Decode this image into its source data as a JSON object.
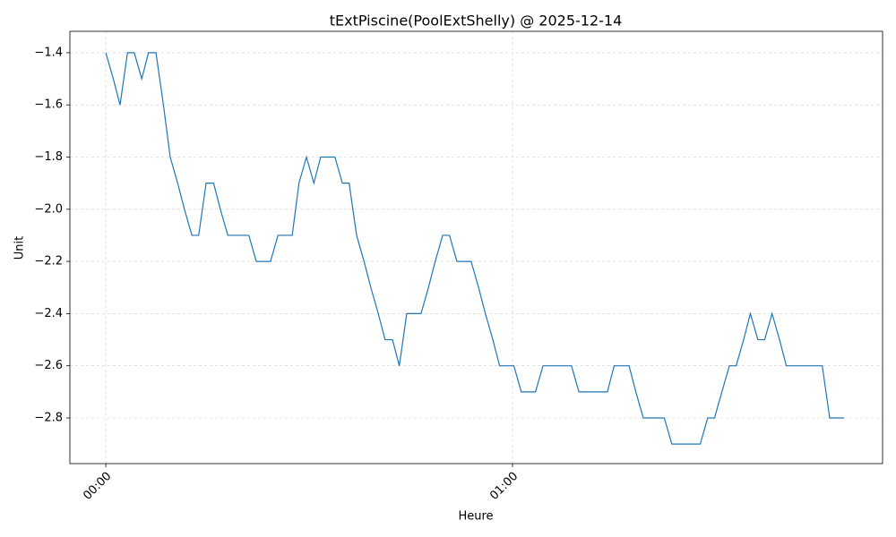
{
  "chart_data": {
    "type": "line",
    "title": "tExtPiscine(PoolExtShelly) @ 2025-12-14",
    "x_label": "Heure",
    "y_label": "Unit",
    "x": [
      0,
      1.1,
      2.1,
      3.2,
      4.2,
      5.3,
      6.3,
      7.4,
      8.5,
      9.5,
      10.6,
      11.6,
      12.7,
      13.7,
      14.8,
      15.9,
      16.9,
      18.0,
      19.0,
      20.1,
      21.1,
      22.2,
      23.3,
      24.3,
      25.4,
      26.4,
      27.5,
      28.5,
      29.6,
      30.7,
      31.7,
      32.8,
      33.8,
      34.9,
      35.9,
      37.0,
      38.1,
      39.1,
      40.2,
      41.2,
      42.3,
      43.3,
      44.4,
      45.5,
      46.5,
      47.6,
      48.6,
      49.7,
      50.7,
      51.8,
      52.9,
      53.9,
      55.0,
      56.0,
      57.1,
      58.1,
      59.2,
      60.2,
      61.3,
      62.4,
      63.4,
      64.5,
      65.5,
      66.6,
      67.6,
      68.7,
      69.8,
      70.8,
      71.9,
      72.9,
      74.0,
      75.0,
      76.1,
      77.2,
      78.2,
      79.3,
      80.3,
      81.4,
      82.4,
      83.5,
      84.6,
      85.6,
      86.7,
      87.7,
      88.8,
      89.8,
      90.9,
      92.0,
      93.0,
      94.1,
      95.1,
      96.2,
      97.2,
      98.3,
      99.4,
      100.4,
      101.5,
      102.5,
      103.6,
      104.6,
      105.7,
      106.8,
      107.8,
      108.9
    ],
    "series": [
      {
        "name": "tExtPiscine",
        "color": "#1f77b4",
        "values": [
          -1.4,
          -1.5,
          -1.6,
          -1.4,
          -1.4,
          -1.5,
          -1.4,
          -1.4,
          -1.6,
          -1.8,
          -1.9,
          -2.0,
          -2.1,
          -2.1,
          -1.9,
          -1.9,
          -2.0,
          -2.1,
          -2.1,
          -2.1,
          -2.1,
          -2.2,
          -2.2,
          -2.2,
          -2.1,
          -2.1,
          -2.1,
          -1.9,
          -1.8,
          -1.9,
          -1.8,
          -1.8,
          -1.8,
          -1.9,
          -1.9,
          -2.1,
          -2.2,
          -2.3,
          -2.4,
          -2.5,
          -2.5,
          -2.6,
          -2.4,
          -2.4,
          -2.4,
          -2.3,
          -2.2,
          -2.1,
          -2.1,
          -2.2,
          -2.2,
          -2.2,
          -2.3,
          -2.4,
          -2.5,
          -2.6,
          -2.6,
          -2.6,
          -2.7,
          -2.7,
          -2.7,
          -2.6,
          -2.6,
          -2.6,
          -2.6,
          -2.6,
          -2.7,
          -2.7,
          -2.7,
          -2.7,
          -2.7,
          -2.6,
          -2.6,
          -2.6,
          -2.7,
          -2.8,
          -2.8,
          -2.8,
          -2.8,
          -2.9,
          -2.9,
          -2.9,
          -2.9,
          -2.9,
          -2.8,
          -2.8,
          -2.7,
          -2.6,
          -2.6,
          -2.5,
          -2.4,
          -2.5,
          -2.5,
          -2.4,
          -2.5,
          -2.6,
          -2.6,
          -2.6,
          -2.6,
          -2.6,
          -2.6,
          -2.8,
          -2.8,
          -2.8
        ]
      }
    ],
    "xlim": [
      -5.3,
      114.6
    ],
    "xticks": [
      {
        "value": 0,
        "label": "00:00"
      },
      {
        "value": 60,
        "label": "01:00"
      }
    ],
    "ylim": [
      -2.975,
      -1.318
    ],
    "yticks": [
      {
        "value": -2.8,
        "label": "−2.8"
      },
      {
        "value": -2.6,
        "label": "−2.6"
      },
      {
        "value": -2.4,
        "label": "−2.4"
      },
      {
        "value": -2.2,
        "label": "−2.2"
      },
      {
        "value": -2.0,
        "label": "−2.0"
      },
      {
        "value": -1.8,
        "label": "−1.8"
      },
      {
        "value": -1.6,
        "label": "−1.6"
      },
      {
        "value": -1.4,
        "label": "−1.4"
      }
    ],
    "grid": true
  }
}
